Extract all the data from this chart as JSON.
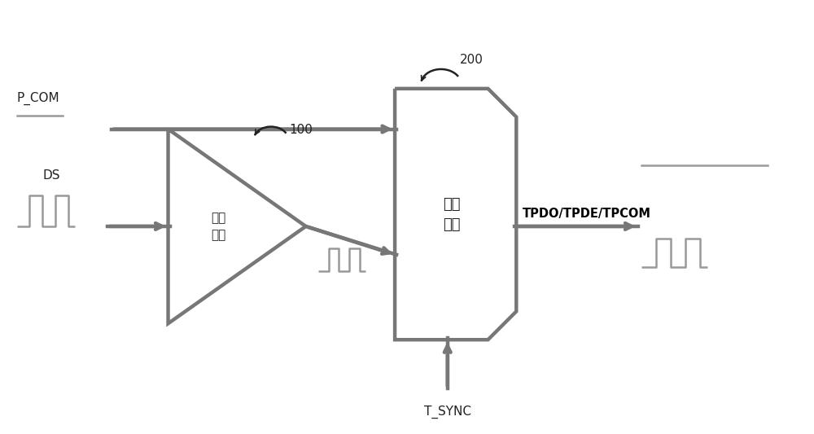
{
  "bg_color": "#ffffff",
  "line_color": "#999999",
  "dark_line_color": "#777777",
  "text_color": "#222222",
  "bold_text_color": "#000000",
  "label_p_com": "P_COM",
  "label_ds": "DS",
  "label_100": "100",
  "label_200": "200",
  "label_amp": "放大\n模块",
  "label_sel": "选择\n模块",
  "label_tsync": "T_SYNC",
  "label_tpdo": "TPDO/TPDE/TPCOM",
  "figsize": [
    10.0,
    5.33
  ],
  "dpi": 100
}
